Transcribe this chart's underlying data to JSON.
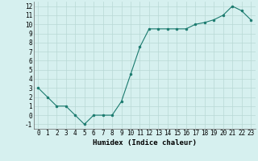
{
  "x": [
    0,
    1,
    2,
    3,
    4,
    5,
    6,
    7,
    8,
    9,
    10,
    11,
    12,
    13,
    14,
    15,
    16,
    17,
    18,
    19,
    20,
    21,
    22,
    23
  ],
  "y": [
    3,
    2,
    1,
    1,
    0,
    -1,
    0,
    0,
    0,
    1.5,
    4.5,
    7.5,
    9.5,
    9.5,
    9.5,
    9.5,
    9.5,
    10,
    10.2,
    10.5,
    11,
    12,
    11.5,
    10.5
  ],
  "line_color": "#1a7a6e",
  "marker_color": "#1a7a6e",
  "bg_color": "#d6f0ef",
  "grid_color": "#b8d8d5",
  "xlabel": "Humidex (Indice chaleur)",
  "xlim": [
    -0.5,
    23.5
  ],
  "ylim": [
    -1.5,
    12.5
  ],
  "yticks": [
    -1,
    0,
    1,
    2,
    3,
    4,
    5,
    6,
    7,
    8,
    9,
    10,
    11,
    12
  ],
  "xticks": [
    0,
    1,
    2,
    3,
    4,
    5,
    6,
    7,
    8,
    9,
    10,
    11,
    12,
    13,
    14,
    15,
    16,
    17,
    18,
    19,
    20,
    21,
    22,
    23
  ],
  "tick_fontsize": 5.5,
  "label_fontsize": 6.5
}
